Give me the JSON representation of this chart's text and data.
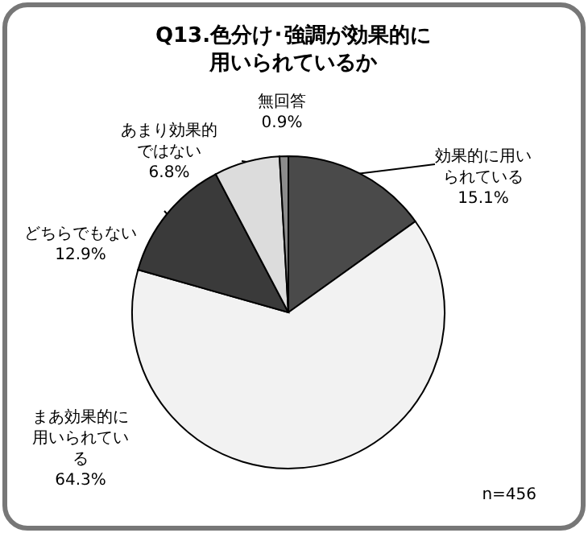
{
  "chart_data": {
    "type": "pie",
    "title": "Q13.色分け･強調が効果的に用いられているか",
    "categories": [
      "効果的に用いられている",
      "まあ効果的に用いられている",
      "どちらでもない",
      "あまり効果的ではない",
      "無回答"
    ],
    "values": [
      15.1,
      64.3,
      12.9,
      6.8,
      0.9
    ],
    "value_labels": [
      "15.1%",
      "64.3%",
      "12.9%",
      "6.8%",
      "0.9%"
    ],
    "colors": [
      "#4a4a4a",
      "#f2f2f2",
      "#3a3a3a",
      "#dcdcdc",
      "#8c8c8c"
    ],
    "annotations": [
      "n=456"
    ]
  }
}
